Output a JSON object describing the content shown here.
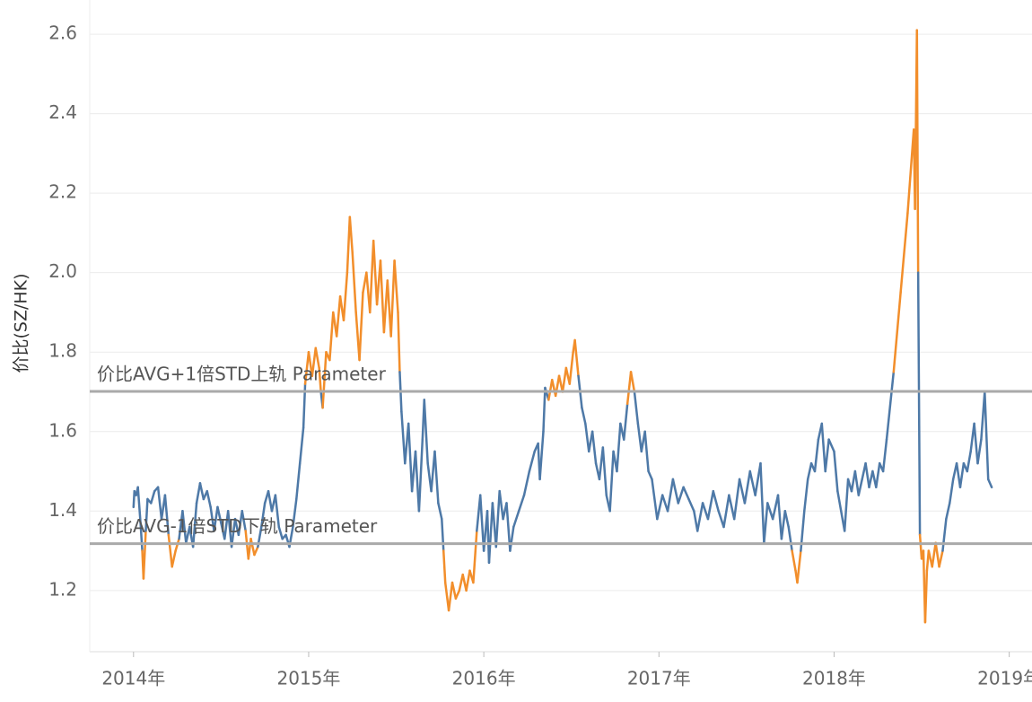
{
  "chart_data": {
    "type": "line",
    "y_label": "价比(SZ/HK)",
    "xlim": [
      2013.75,
      2019.13
    ],
    "ylim": [
      1.046,
      2.686
    ],
    "xticks": [
      {
        "value": 2014,
        "label": "2014年"
      },
      {
        "value": 2015,
        "label": "2015年"
      },
      {
        "value": 2016,
        "label": "2016年"
      },
      {
        "value": 2017,
        "label": "2017年"
      },
      {
        "value": 2018,
        "label": "2018年"
      },
      {
        "value": 2019,
        "label": "2019年"
      }
    ],
    "yticks": [
      1.2,
      1.4,
      1.6,
      1.8,
      {
        "value": 2,
        "label": "2.0"
      },
      2.2,
      2.4,
      2.6
    ],
    "grid": true,
    "color": "#4e79a7",
    "outside_color": "#f28e2b",
    "reference_lines": [
      {
        "label": "价比AVG+1倍STD上轨 Parameter",
        "value": 1.701
      },
      {
        "label": "价比AVG-1倍STD下轨 Parameter",
        "value": 1.318
      }
    ],
    "x": [
      2014.0,
      2014.005,
      2014.015,
      2014.025,
      2014.04,
      2014.05,
      2014.057,
      2014.07,
      2014.08,
      2014.1,
      2014.12,
      2014.14,
      2014.16,
      2014.18,
      2014.2,
      2014.22,
      2014.24,
      2014.26,
      2014.28,
      2014.3,
      2014.32,
      2014.34,
      2014.36,
      2014.38,
      2014.4,
      2014.42,
      2014.44,
      2014.46,
      2014.48,
      2014.5,
      2014.52,
      2014.54,
      2014.56,
      2014.58,
      2014.6,
      2014.62,
      2014.64,
      2014.656,
      2014.67,
      2014.69,
      2014.71,
      2014.73,
      2014.75,
      2014.77,
      2014.79,
      2014.81,
      2014.83,
      2014.85,
      2014.87,
      2014.89,
      2014.91,
      2014.93,
      2014.95,
      2014.97,
      2014.98,
      2015.0,
      2015.02,
      2015.04,
      2015.06,
      2015.07,
      2015.08,
      2015.1,
      2015.12,
      2015.14,
      2015.16,
      2015.18,
      2015.2,
      2015.22,
      2015.235,
      2015.25,
      2015.27,
      2015.29,
      2015.31,
      2015.33,
      2015.35,
      2015.37,
      2015.39,
      2015.41,
      2015.43,
      2015.45,
      2015.47,
      2015.49,
      2015.51,
      2015.52,
      2015.53,
      2015.55,
      2015.57,
      2015.59,
      2015.61,
      2015.63,
      2015.65,
      2015.66,
      2015.68,
      2015.7,
      2015.72,
      2015.74,
      2015.76,
      2015.77,
      2015.78,
      2015.8,
      2015.82,
      2015.84,
      2015.86,
      2015.88,
      2015.9,
      2015.92,
      2015.94,
      2015.96,
      2015.98,
      2016.0,
      2016.02,
      2016.03,
      2016.05,
      2016.07,
      2016.09,
      2016.11,
      2016.13,
      2016.15,
      2016.17,
      2016.2,
      2016.23,
      2016.26,
      2016.29,
      2016.31,
      2016.32,
      2016.34,
      2016.35,
      2016.37,
      2016.39,
      2016.41,
      2016.43,
      2016.45,
      2016.47,
      2016.49,
      2016.51,
      2016.52,
      2016.54,
      2016.56,
      2016.58,
      2016.6,
      2016.62,
      2016.64,
      2016.66,
      2016.68,
      2016.7,
      2016.72,
      2016.74,
      2016.76,
      2016.78,
      2016.8,
      2016.82,
      2016.84,
      2016.86,
      2016.88,
      2016.9,
      2016.92,
      2016.94,
      2016.96,
      2016.99,
      2017.02,
      2017.05,
      2017.08,
      2017.11,
      2017.14,
      2017.17,
      2017.2,
      2017.22,
      2017.25,
      2017.28,
      2017.31,
      2017.34,
      2017.37,
      2017.4,
      2017.43,
      2017.46,
      2017.49,
      2017.52,
      2017.55,
      2017.58,
      2017.6,
      2017.62,
      2017.65,
      2017.68,
      2017.7,
      2017.72,
      2017.74,
      2017.76,
      2017.78,
      2017.79,
      2017.81,
      2017.83,
      2017.85,
      2017.87,
      2017.89,
      2017.91,
      2017.93,
      2017.95,
      2017.97,
      2018.0,
      2018.02,
      2018.04,
      2018.06,
      2018.08,
      2018.1,
      2018.12,
      2018.14,
      2018.16,
      2018.18,
      2018.2,
      2018.22,
      2018.24,
      2018.26,
      2018.28,
      2018.3,
      2018.34,
      2018.38,
      2018.42,
      2018.455,
      2018.462,
      2018.473,
      2018.48,
      2018.49,
      2018.5,
      2018.51,
      2018.52,
      2018.53,
      2018.54,
      2018.56,
      2018.58,
      2018.6,
      2018.62,
      2018.64,
      2018.66,
      2018.68,
      2018.7,
      2018.72,
      2018.74,
      2018.76,
      2018.78,
      2018.8,
      2018.82,
      2018.84,
      2018.86,
      2018.88,
      2018.9
    ],
    "values": [
      1.41,
      1.45,
      1.44,
      1.46,
      1.37,
      1.3,
      1.23,
      1.35,
      1.43,
      1.42,
      1.45,
      1.46,
      1.38,
      1.44,
      1.34,
      1.26,
      1.3,
      1.33,
      1.4,
      1.32,
      1.36,
      1.31,
      1.42,
      1.47,
      1.43,
      1.45,
      1.41,
      1.35,
      1.41,
      1.37,
      1.33,
      1.4,
      1.31,
      1.38,
      1.34,
      1.4,
      1.35,
      1.28,
      1.33,
      1.29,
      1.31,
      1.36,
      1.42,
      1.45,
      1.4,
      1.44,
      1.36,
      1.33,
      1.34,
      1.31,
      1.36,
      1.43,
      1.52,
      1.61,
      1.72,
      1.8,
      1.74,
      1.81,
      1.76,
      1.7,
      1.66,
      1.8,
      1.78,
      1.9,
      1.84,
      1.94,
      1.88,
      2.0,
      2.14,
      2.05,
      1.9,
      1.78,
      1.95,
      2.0,
      1.9,
      2.08,
      1.92,
      2.03,
      1.85,
      1.98,
      1.84,
      2.03,
      1.9,
      1.75,
      1.65,
      1.52,
      1.62,
      1.45,
      1.55,
      1.4,
      1.58,
      1.68,
      1.52,
      1.45,
      1.55,
      1.42,
      1.38,
      1.3,
      1.22,
      1.15,
      1.22,
      1.18,
      1.2,
      1.24,
      1.2,
      1.25,
      1.22,
      1.35,
      1.44,
      1.3,
      1.4,
      1.27,
      1.42,
      1.31,
      1.45,
      1.38,
      1.42,
      1.3,
      1.36,
      1.4,
      1.44,
      1.5,
      1.55,
      1.57,
      1.48,
      1.6,
      1.71,
      1.68,
      1.73,
      1.69,
      1.74,
      1.7,
      1.76,
      1.72,
      1.8,
      1.83,
      1.74,
      1.66,
      1.62,
      1.55,
      1.6,
      1.52,
      1.48,
      1.56,
      1.44,
      1.4,
      1.55,
      1.5,
      1.62,
      1.58,
      1.67,
      1.75,
      1.7,
      1.62,
      1.55,
      1.6,
      1.5,
      1.48,
      1.38,
      1.44,
      1.4,
      1.48,
      1.42,
      1.46,
      1.43,
      1.4,
      1.35,
      1.42,
      1.38,
      1.45,
      1.4,
      1.36,
      1.44,
      1.38,
      1.48,
      1.42,
      1.5,
      1.44,
      1.52,
      1.32,
      1.42,
      1.38,
      1.44,
      1.33,
      1.4,
      1.36,
      1.3,
      1.25,
      1.22,
      1.3,
      1.4,
      1.48,
      1.52,
      1.5,
      1.58,
      1.62,
      1.5,
      1.58,
      1.55,
      1.45,
      1.4,
      1.35,
      1.48,
      1.45,
      1.5,
      1.44,
      1.48,
      1.52,
      1.46,
      1.5,
      1.46,
      1.52,
      1.5,
      1.58,
      1.75,
      1.95,
      2.15,
      2.36,
      2.16,
      2.61,
      2.0,
      1.34,
      1.28,
      1.3,
      1.12,
      1.25,
      1.3,
      1.26,
      1.32,
      1.26,
      1.3,
      1.38,
      1.42,
      1.48,
      1.52,
      1.46,
      1.52,
      1.5,
      1.55,
      1.62,
      1.52,
      1.58,
      1.7,
      1.48,
      1.46
    ]
  }
}
